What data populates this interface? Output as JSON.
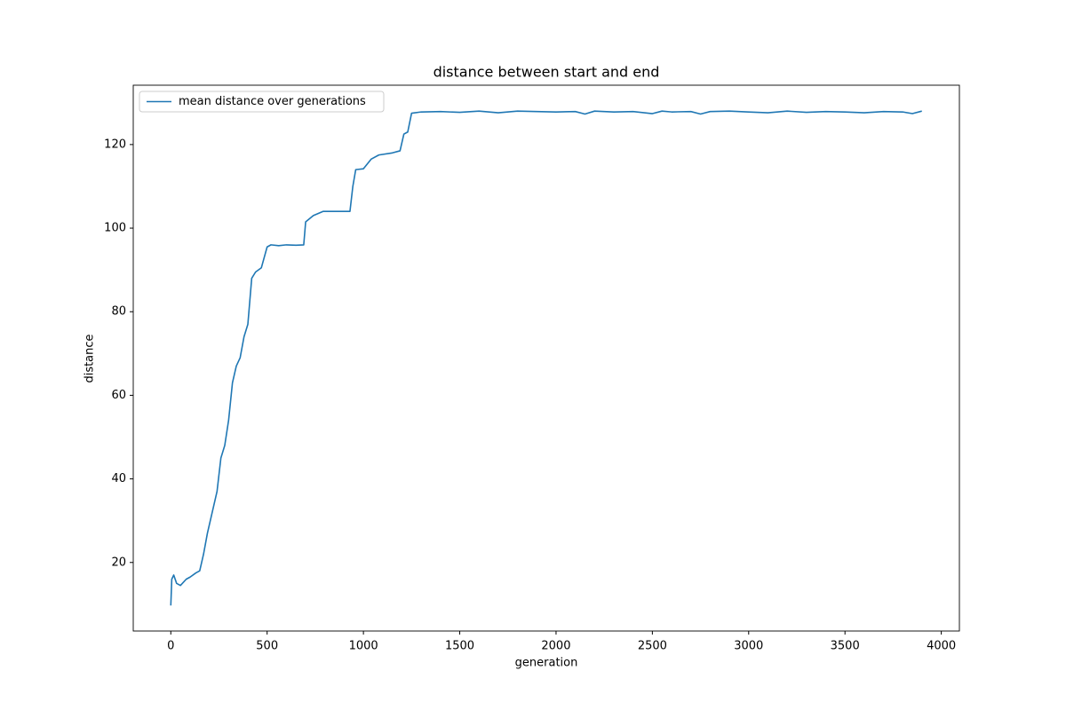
{
  "chart_data": {
    "type": "line",
    "title": "distance between start and end",
    "x_label": "generation",
    "y_label": "distance",
    "x": [
      0,
      5,
      15,
      30,
      50,
      80,
      100,
      130,
      150,
      170,
      190,
      210,
      240,
      260,
      280,
      300,
      320,
      340,
      360,
      380,
      400,
      420,
      440,
      470,
      500,
      520,
      560,
      600,
      650,
      690,
      700,
      740,
      790,
      850,
      930,
      945,
      960,
      1000,
      1040,
      1080,
      1150,
      1190,
      1210,
      1230,
      1250,
      1300,
      1400,
      1500,
      1600,
      1700,
      1800,
      1900,
      2000,
      2100,
      2150,
      2200,
      2300,
      2400,
      2500,
      2550,
      2600,
      2700,
      2750,
      2800,
      2900,
      3000,
      3100,
      3200,
      3300,
      3400,
      3500,
      3600,
      3700,
      3800,
      3850,
      3899
    ],
    "series": [
      {
        "name": "mean distance over generations",
        "color": "#1f77b4",
        "values": [
          9.7,
          16,
          17,
          15,
          14.5,
          16,
          16.5,
          17.5,
          18,
          22,
          27,
          31,
          37,
          45,
          48,
          54,
          63,
          67,
          69,
          74,
          77,
          88,
          89.5,
          90.5,
          95.5,
          96,
          95.8,
          96,
          95.9,
          96,
          101.5,
          103,
          104,
          104,
          104,
          110,
          114,
          114.2,
          116.5,
          117.5,
          118,
          118.5,
          122.5,
          123,
          127.5,
          127.8,
          127.9,
          127.7,
          128,
          127.6,
          128,
          127.9,
          127.8,
          127.9,
          127.3,
          128,
          127.8,
          127.9,
          127.4,
          128,
          127.8,
          127.9,
          127.3,
          127.9,
          128,
          127.8,
          127.6,
          128,
          127.7,
          127.9,
          127.8,
          127.6,
          127.9,
          127.8,
          127.4,
          128
        ]
      }
    ],
    "xlim": [
      -195,
      4094
    ],
    "ylim": [
      3.6,
      134.2
    ],
    "xticks": [
      0,
      500,
      1000,
      1500,
      2000,
      2500,
      3000,
      3500,
      4000
    ],
    "yticks": [
      20,
      40,
      60,
      80,
      100,
      120
    ],
    "legend": "upper left",
    "grid": false
  }
}
